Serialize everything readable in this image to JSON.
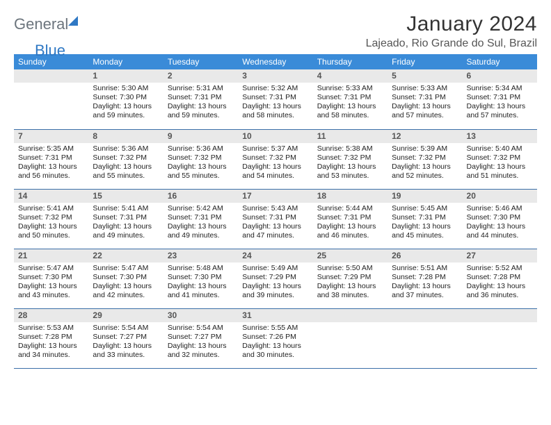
{
  "brand": {
    "part1": "General",
    "part2": "Blue"
  },
  "header": {
    "month_title": "January 2024",
    "location": "Lajeado, Rio Grande do Sul, Brazil"
  },
  "style": {
    "header_bg": "#3a8bd8",
    "header_fg": "#ffffff",
    "daynum_bg": "#e9e9e9",
    "daynum_fg": "#555555",
    "row_border": "#3a6ea8",
    "body_fg": "#222222",
    "brand_gray": "#6c757d",
    "brand_blue": "#2f78c4",
    "font_family": "Arial",
    "month_fontsize": 30,
    "location_fontsize": 16,
    "weekday_fontsize": 12,
    "cell_fontsize": 10.5
  },
  "weekdays": [
    "Sunday",
    "Monday",
    "Tuesday",
    "Wednesday",
    "Thursday",
    "Friday",
    "Saturday"
  ],
  "first_weekday_index": 1,
  "days": [
    {
      "n": 1,
      "sunrise": "5:30 AM",
      "sunset": "7:30 PM",
      "daylight": "13 hours and 59 minutes."
    },
    {
      "n": 2,
      "sunrise": "5:31 AM",
      "sunset": "7:31 PM",
      "daylight": "13 hours and 59 minutes."
    },
    {
      "n": 3,
      "sunrise": "5:32 AM",
      "sunset": "7:31 PM",
      "daylight": "13 hours and 58 minutes."
    },
    {
      "n": 4,
      "sunrise": "5:33 AM",
      "sunset": "7:31 PM",
      "daylight": "13 hours and 58 minutes."
    },
    {
      "n": 5,
      "sunrise": "5:33 AM",
      "sunset": "7:31 PM",
      "daylight": "13 hours and 57 minutes."
    },
    {
      "n": 6,
      "sunrise": "5:34 AM",
      "sunset": "7:31 PM",
      "daylight": "13 hours and 57 minutes."
    },
    {
      "n": 7,
      "sunrise": "5:35 AM",
      "sunset": "7:31 PM",
      "daylight": "13 hours and 56 minutes."
    },
    {
      "n": 8,
      "sunrise": "5:36 AM",
      "sunset": "7:32 PM",
      "daylight": "13 hours and 55 minutes."
    },
    {
      "n": 9,
      "sunrise": "5:36 AM",
      "sunset": "7:32 PM",
      "daylight": "13 hours and 55 minutes."
    },
    {
      "n": 10,
      "sunrise": "5:37 AM",
      "sunset": "7:32 PM",
      "daylight": "13 hours and 54 minutes."
    },
    {
      "n": 11,
      "sunrise": "5:38 AM",
      "sunset": "7:32 PM",
      "daylight": "13 hours and 53 minutes."
    },
    {
      "n": 12,
      "sunrise": "5:39 AM",
      "sunset": "7:32 PM",
      "daylight": "13 hours and 52 minutes."
    },
    {
      "n": 13,
      "sunrise": "5:40 AM",
      "sunset": "7:32 PM",
      "daylight": "13 hours and 51 minutes."
    },
    {
      "n": 14,
      "sunrise": "5:41 AM",
      "sunset": "7:32 PM",
      "daylight": "13 hours and 50 minutes."
    },
    {
      "n": 15,
      "sunrise": "5:41 AM",
      "sunset": "7:31 PM",
      "daylight": "13 hours and 49 minutes."
    },
    {
      "n": 16,
      "sunrise": "5:42 AM",
      "sunset": "7:31 PM",
      "daylight": "13 hours and 49 minutes."
    },
    {
      "n": 17,
      "sunrise": "5:43 AM",
      "sunset": "7:31 PM",
      "daylight": "13 hours and 47 minutes."
    },
    {
      "n": 18,
      "sunrise": "5:44 AM",
      "sunset": "7:31 PM",
      "daylight": "13 hours and 46 minutes."
    },
    {
      "n": 19,
      "sunrise": "5:45 AM",
      "sunset": "7:31 PM",
      "daylight": "13 hours and 45 minutes."
    },
    {
      "n": 20,
      "sunrise": "5:46 AM",
      "sunset": "7:30 PM",
      "daylight": "13 hours and 44 minutes."
    },
    {
      "n": 21,
      "sunrise": "5:47 AM",
      "sunset": "7:30 PM",
      "daylight": "13 hours and 43 minutes."
    },
    {
      "n": 22,
      "sunrise": "5:47 AM",
      "sunset": "7:30 PM",
      "daylight": "13 hours and 42 minutes."
    },
    {
      "n": 23,
      "sunrise": "5:48 AM",
      "sunset": "7:30 PM",
      "daylight": "13 hours and 41 minutes."
    },
    {
      "n": 24,
      "sunrise": "5:49 AM",
      "sunset": "7:29 PM",
      "daylight": "13 hours and 39 minutes."
    },
    {
      "n": 25,
      "sunrise": "5:50 AM",
      "sunset": "7:29 PM",
      "daylight": "13 hours and 38 minutes."
    },
    {
      "n": 26,
      "sunrise": "5:51 AM",
      "sunset": "7:28 PM",
      "daylight": "13 hours and 37 minutes."
    },
    {
      "n": 27,
      "sunrise": "5:52 AM",
      "sunset": "7:28 PM",
      "daylight": "13 hours and 36 minutes."
    },
    {
      "n": 28,
      "sunrise": "5:53 AM",
      "sunset": "7:28 PM",
      "daylight": "13 hours and 34 minutes."
    },
    {
      "n": 29,
      "sunrise": "5:54 AM",
      "sunset": "7:27 PM",
      "daylight": "13 hours and 33 minutes."
    },
    {
      "n": 30,
      "sunrise": "5:54 AM",
      "sunset": "7:27 PM",
      "daylight": "13 hours and 32 minutes."
    },
    {
      "n": 31,
      "sunrise": "5:55 AM",
      "sunset": "7:26 PM",
      "daylight": "13 hours and 30 minutes."
    }
  ],
  "labels": {
    "sunrise": "Sunrise:",
    "sunset": "Sunset:",
    "daylight": "Daylight:"
  }
}
